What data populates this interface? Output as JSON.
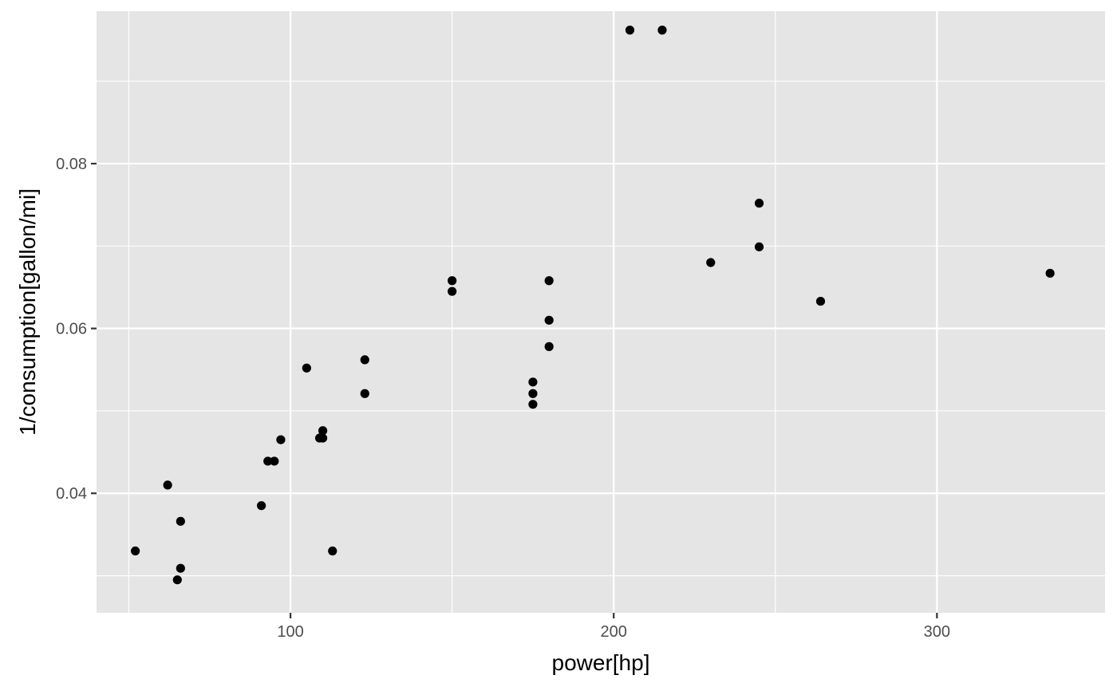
{
  "chart_data": {
    "type": "scatter",
    "xlabel": "power[hp]",
    "ylabel": "1/consumption[gallon/mi]",
    "xlim": [
      40,
      352
    ],
    "ylim": [
      0.0255,
      0.0985
    ],
    "x_ticks": [
      {
        "value": 100,
        "label": "100"
      },
      {
        "value": 200,
        "label": "200"
      },
      {
        "value": 300,
        "label": "300"
      }
    ],
    "x_minor_ticks": [
      50,
      150,
      250
    ],
    "y_ticks": [
      {
        "value": 0.04,
        "label": "0.04"
      },
      {
        "value": 0.06,
        "label": "0.06"
      },
      {
        "value": 0.08,
        "label": "0.08"
      }
    ],
    "y_minor_ticks": [
      0.03,
      0.05,
      0.07,
      0.09
    ],
    "grid": true,
    "colors": {
      "panel": "#e5e5e5",
      "grid": "#ffffff",
      "point": "#000000",
      "tick_text": "#4d4d4d",
      "title_text": "#000000"
    },
    "points": [
      {
        "x": 52,
        "y": 0.033
      },
      {
        "x": 62,
        "y": 0.041
      },
      {
        "x": 65,
        "y": 0.0295
      },
      {
        "x": 66,
        "y": 0.0366
      },
      {
        "x": 66,
        "y": 0.0309
      },
      {
        "x": 91,
        "y": 0.0385
      },
      {
        "x": 93,
        "y": 0.0439
      },
      {
        "x": 95,
        "y": 0.0439
      },
      {
        "x": 97,
        "y": 0.0465
      },
      {
        "x": 105,
        "y": 0.0552
      },
      {
        "x": 109,
        "y": 0.0467
      },
      {
        "x": 110,
        "y": 0.0476
      },
      {
        "x": 110,
        "y": 0.0467
      },
      {
        "x": 113,
        "y": 0.033
      },
      {
        "x": 123,
        "y": 0.0562
      },
      {
        "x": 123,
        "y": 0.0521
      },
      {
        "x": 150,
        "y": 0.0658
      },
      {
        "x": 150,
        "y": 0.0645
      },
      {
        "x": 175,
        "y": 0.0535
      },
      {
        "x": 175,
        "y": 0.0521
      },
      {
        "x": 175,
        "y": 0.0508
      },
      {
        "x": 180,
        "y": 0.0658
      },
      {
        "x": 180,
        "y": 0.061
      },
      {
        "x": 180,
        "y": 0.0578
      },
      {
        "x": 205,
        "y": 0.0962
      },
      {
        "x": 215,
        "y": 0.0962
      },
      {
        "x": 230,
        "y": 0.068
      },
      {
        "x": 245,
        "y": 0.0752
      },
      {
        "x": 245,
        "y": 0.0699
      },
      {
        "x": 264,
        "y": 0.0633
      },
      {
        "x": 335,
        "y": 0.0667
      }
    ]
  }
}
